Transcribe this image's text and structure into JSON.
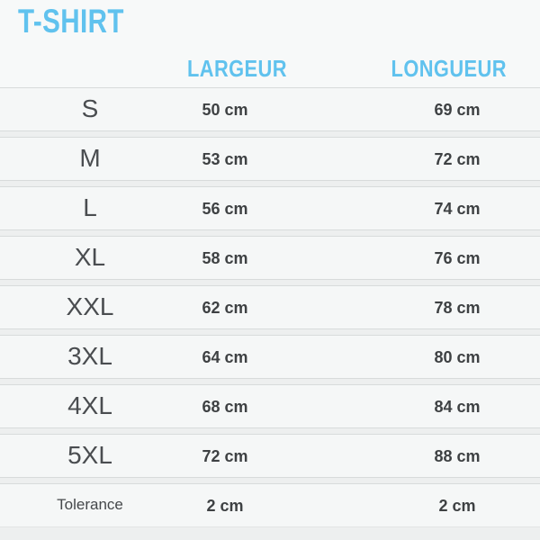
{
  "chart_data": {
    "type": "table",
    "title": "T-SHIRT",
    "columns": [
      "",
      "LARGEUR",
      "LONGUEUR"
    ],
    "unit": "cm",
    "rows": [
      {
        "size": "S",
        "largeur": "50 cm",
        "longueur": "69 cm"
      },
      {
        "size": "M",
        "largeur": "53 cm",
        "longueur": "72 cm"
      },
      {
        "size": "L",
        "largeur": "56 cm",
        "longueur": "74 cm"
      },
      {
        "size": "XL",
        "largeur": "58 cm",
        "longueur": "76 cm"
      },
      {
        "size": "XXL",
        "largeur": "62 cm",
        "longueur": "78 cm"
      },
      {
        "size": "3XL",
        "largeur": "64 cm",
        "longueur": "80 cm"
      },
      {
        "size": "4XL",
        "largeur": "68 cm",
        "longueur": "84 cm"
      },
      {
        "size": "5XL",
        "largeur": "72 cm",
        "longueur": "88 cm"
      },
      {
        "size": "Tolerance",
        "largeur": "2 cm",
        "longueur": "2 cm"
      }
    ],
    "colors": {
      "accent": "#60c2ee",
      "row_background": "#f5f7f7",
      "gap_background": "#edefef",
      "separator": "#d8dbdb",
      "size_text": "#4a4d50",
      "value_text": "#3e4143"
    },
    "legend_position": "none",
    "grid": "horizontal-separators"
  }
}
